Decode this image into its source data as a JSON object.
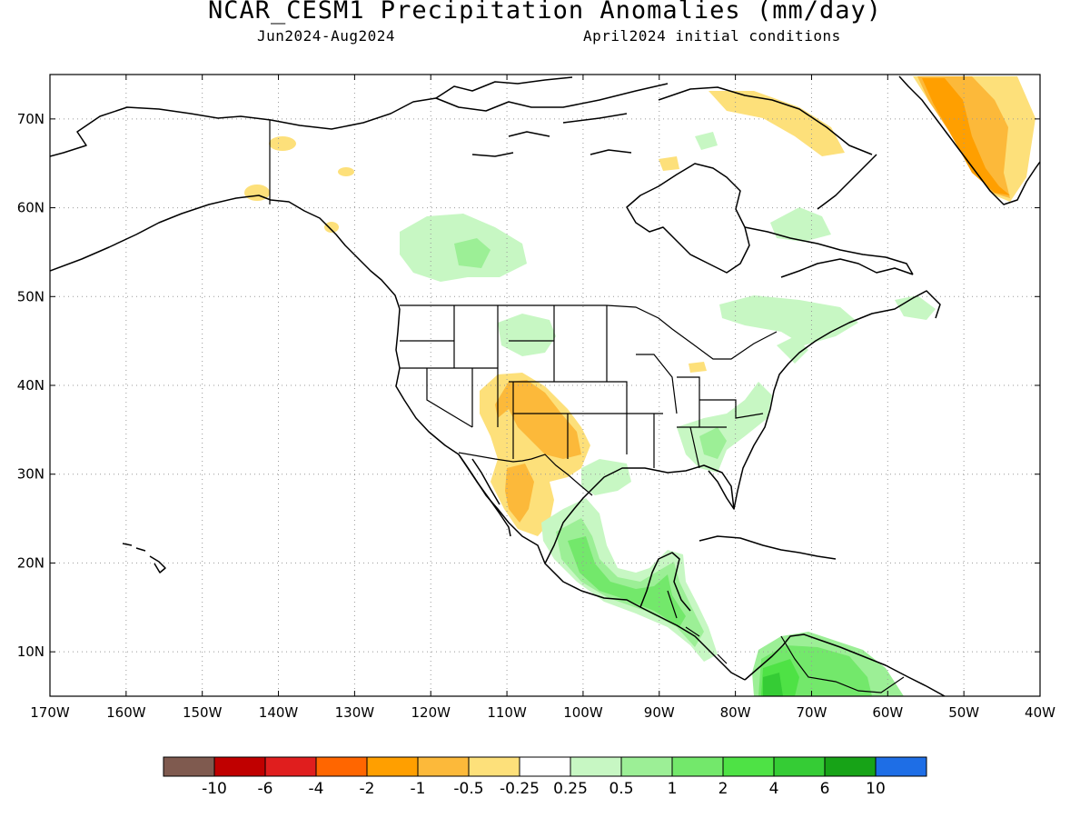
{
  "title": "NCAR_CESM1 Precipitation Anomalies (mm/day)",
  "subtitle_period": "Jun2024-Aug2024",
  "subtitle_init": "April2024 initial conditions",
  "map": {
    "lon_range": [
      -170,
      -40
    ],
    "lat_range": [
      5,
      75
    ],
    "lon_ticks": [
      {
        "value": -170,
        "label": "170W"
      },
      {
        "value": -160,
        "label": "160W"
      },
      {
        "value": -150,
        "label": "150W"
      },
      {
        "value": -140,
        "label": "140W"
      },
      {
        "value": -130,
        "label": "130W"
      },
      {
        "value": -120,
        "label": "120W"
      },
      {
        "value": -110,
        "label": "110W"
      },
      {
        "value": -100,
        "label": "100W"
      },
      {
        "value": -90,
        "label": "90W"
      },
      {
        "value": -80,
        "label": "80W"
      },
      {
        "value": -70,
        "label": "70W"
      },
      {
        "value": -60,
        "label": "60W"
      },
      {
        "value": -50,
        "label": "50W"
      },
      {
        "value": -40,
        "label": "40W"
      }
    ],
    "lat_ticks": [
      {
        "value": 10,
        "label": "10N"
      },
      {
        "value": 20,
        "label": "20N"
      },
      {
        "value": 30,
        "label": "30N"
      },
      {
        "value": 40,
        "label": "40N"
      },
      {
        "value": 50,
        "label": "50N"
      },
      {
        "value": 60,
        "label": "60N"
      },
      {
        "value": 70,
        "label": "70N"
      }
    ],
    "gridlines": "dotted"
  },
  "colorbar": {
    "colors": [
      "#7f5a4f",
      "#c00000",
      "#e01e1e",
      "#ff6600",
      "#ff9f00",
      "#fcb93a",
      "#fde07a",
      "#ffffff",
      "#c7f7c3",
      "#9cef96",
      "#73e86b",
      "#4ee245",
      "#35cc35",
      "#17a317",
      "#1e6ee6"
    ],
    "labels": [
      "-10",
      "-6",
      "-4",
      "-2",
      "-1",
      "-0.5",
      "-0.25",
      "0.25",
      "0.5",
      "1",
      "2",
      "4",
      "6",
      "10"
    ]
  },
  "anomaly_regions": [
    {
      "region": "Southwest US / Four Corners",
      "level": "-0.5"
    },
    {
      "region": "Northwest Mexico",
      "level": "-0.5"
    },
    {
      "region": "West Greenland coast",
      "level": "-1"
    },
    {
      "region": "Baffin Island",
      "level": "-0.25"
    },
    {
      "region": "Alaska / Yukon border",
      "level": "-0.25"
    },
    {
      "region": "Western Canada (Alberta)",
      "level": "0.5"
    },
    {
      "region": "Southern Mexico",
      "level": "1"
    },
    {
      "region": "Central America",
      "level": "1"
    },
    {
      "region": "Colombia / Venezuela",
      "level": "2"
    },
    {
      "region": "Southeast US",
      "level": "0.5"
    },
    {
      "region": "Eastern Canada",
      "level": "0.25"
    }
  ]
}
